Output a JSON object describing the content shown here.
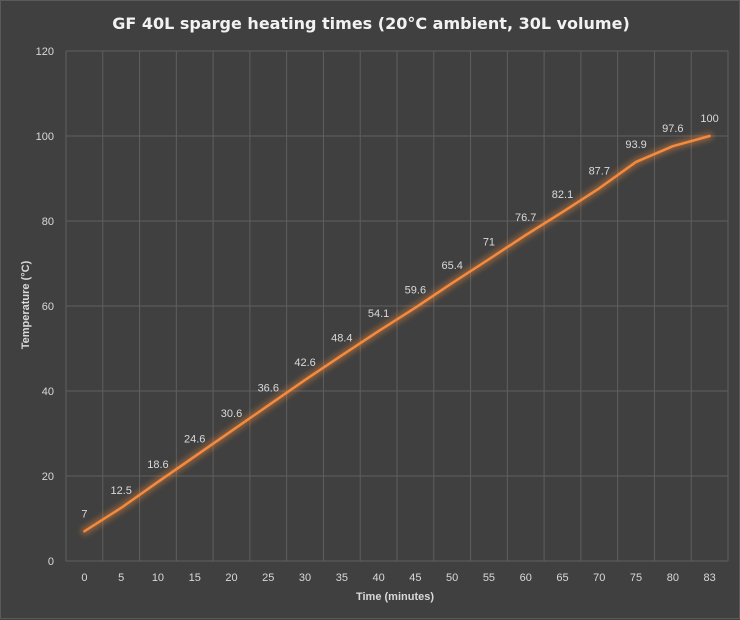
{
  "chart_data": {
    "type": "line",
    "title": "GF 40L sparge heating times (20°C ambient, 30L volume)",
    "xlabel": "Time (minutes)",
    "ylabel": "Temperature (°C)",
    "categories": [
      "0",
      "5",
      "10",
      "15",
      "20",
      "25",
      "30",
      "35",
      "40",
      "45",
      "50",
      "55",
      "60",
      "65",
      "70",
      "75",
      "80",
      "83"
    ],
    "series": [
      {
        "values": [
          7,
          12.5,
          18.6,
          24.6,
          30.6,
          36.6,
          42.6,
          48.4,
          54.1,
          59.6,
          65.4,
          71,
          76.7,
          82.1,
          87.7,
          93.9,
          97.6,
          100
        ]
      }
    ],
    "yticks": [
      "0",
      "20",
      "40",
      "60",
      "80",
      "100",
      "120"
    ],
    "ylim": [
      0,
      120
    ],
    "grid": true,
    "legend": "none",
    "colors": {
      "background": "#404040",
      "line": "#f58a3c",
      "glow": "#f58a3c",
      "grid": "#5f5f5f",
      "text": "#d9d9d9",
      "title": "#f2f2f2"
    }
  }
}
